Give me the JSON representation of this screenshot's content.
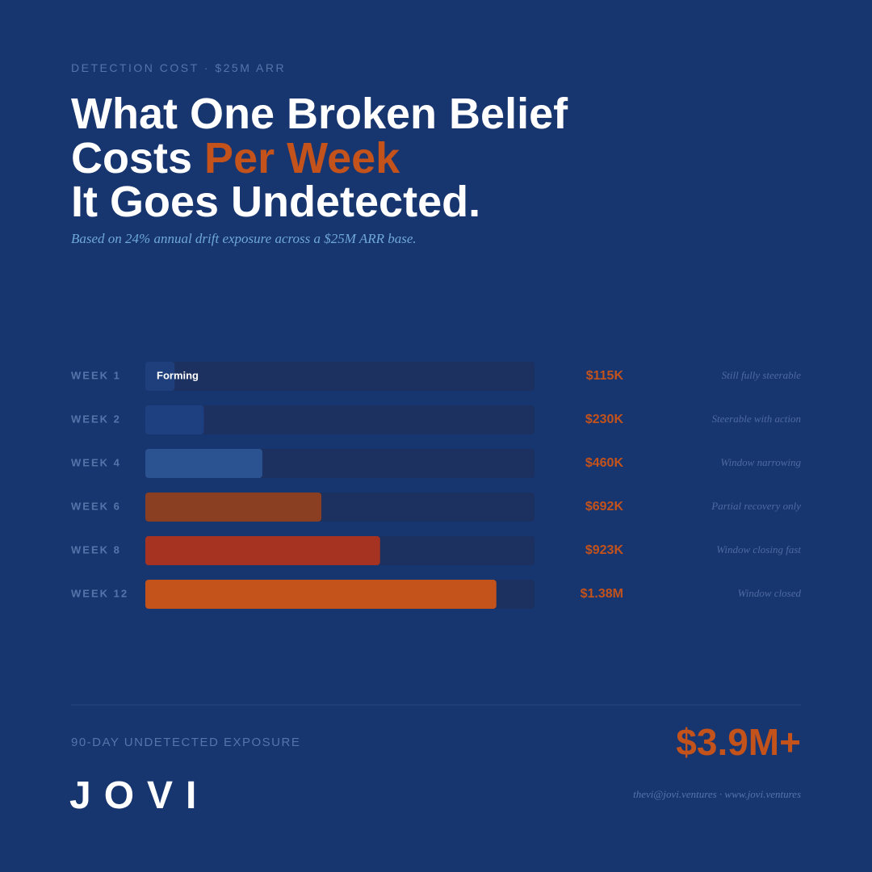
{
  "header": {
    "kicker": "DETECTION COST · $25M ARR",
    "title_lines": [
      "What One Broken Belief",
      "Costs ",
      "Per Week",
      "It Goes Undetected."
    ],
    "subtitle": "Based on 24% annual drift exposure across a $25M ARR base."
  },
  "chart_data": {
    "type": "bar",
    "orientation": "horizontal",
    "categories": [
      "WEEK 1",
      "WEEK 2",
      "WEEK 4",
      "WEEK 6",
      "WEEK 8",
      "WEEK 12"
    ],
    "values": [
      115000,
      230000,
      460000,
      692000,
      923000,
      1380000
    ],
    "value_labels": [
      "$115K",
      "$230K",
      "$460K",
      "$692K",
      "$923K",
      "$1.38M"
    ],
    "notes": [
      "Still fully steerable",
      "Steerable with action",
      "Window narrowing",
      "Partial recovery only",
      "Window closing fast",
      "Window closed"
    ],
    "colors": [
      "#1f3f7c",
      "#1f4080",
      "#2c5391",
      "#8a3f22",
      "#a63322",
      "#c4521b"
    ],
    "track_color": "#1d3160",
    "bar_annotation": "Forming",
    "xlim": [
      0,
      1530000
    ]
  },
  "footer": {
    "exposure_label": "90-DAY UNDETECTED EXPOSURE",
    "exposure_value": "$3.9M+",
    "logo": "JOVI",
    "contact": "thevi@jovi.ventures · www.jovi.ventures"
  }
}
